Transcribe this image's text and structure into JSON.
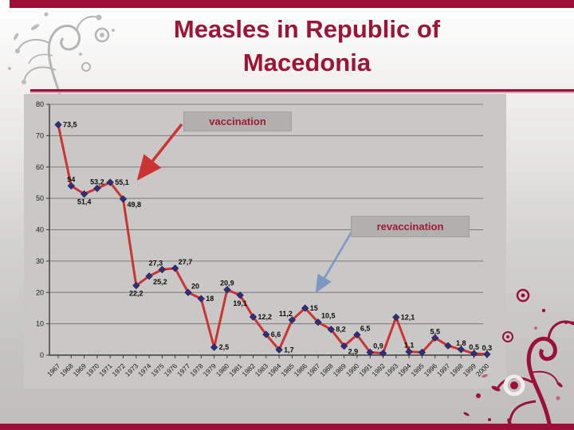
{
  "slide": {
    "title_line1": "Measles in Republic of",
    "title_line2": "Macedonia"
  },
  "colors": {
    "theme_maroon": "#9c1038",
    "title_text": "#9e1434",
    "divider_pink": "#dc9cb4",
    "chart_background": "#c9c8c6",
    "gridline": "#7d7b78",
    "series_line": "#cc3333",
    "marker": "#2f2f80",
    "annotation_box": "#b2b0ae",
    "annotation_text": "#9e1b32",
    "vaccination_arrow": "#cc3333",
    "revaccination_arrow": "#7b97c4"
  },
  "chart_data": {
    "type": "line",
    "title": "",
    "xlabel": "",
    "ylabel": "",
    "ylim": [
      0,
      80
    ],
    "yticks": [
      0,
      10,
      20,
      30,
      40,
      50,
      60,
      70,
      80
    ],
    "grid": true,
    "legend_position": "none",
    "line_color": "#cc3333",
    "marker_color": "#2f2f80",
    "marker_shape": "diamond",
    "x_years": [
      "1967",
      "1968",
      "1969",
      "1970",
      "1971",
      "1972",
      "1973",
      "1974",
      "1975",
      "1976",
      "1977",
      "1978",
      "1979",
      "1980",
      "1981",
      "1982",
      "1983",
      "1984",
      "1985",
      "1986",
      "1987",
      "1988",
      "1989",
      "1990",
      "1991",
      "1992",
      "1993",
      "1994",
      "1995",
      "1996",
      "1997",
      "1998",
      "1999",
      "2000"
    ],
    "values": [
      73.5,
      54,
      51.4,
      53.2,
      55.1,
      49.8,
      22.2,
      25.2,
      27.3,
      27.7,
      20,
      18,
      2.5,
      20.9,
      19.1,
      12.2,
      6.6,
      1.7,
      11.2,
      15,
      10.5,
      8.2,
      2.9,
      6.5,
      0.9,
      0.6,
      12.1,
      1.1,
      0.9,
      5.5,
      3,
      1.8,
      0.5,
      0.3
    ],
    "point_labels": [
      "73,5",
      "54",
      "51,4",
      "53,2",
      "55,1",
      "49,8",
      "22,2",
      "25,2",
      "27,3",
      "27,7",
      "20",
      "18",
      "2,5",
      "20,9",
      "19,1",
      "12,2",
      "6,6",
      "1,7",
      "11,2",
      "15",
      "10,5",
      "8,2",
      "2,9",
      "6,5",
      "0,9",
      "",
      "12,1",
      "1,1",
      "",
      "5,5",
      "",
      "1,8",
      "0,5",
      "0,3"
    ],
    "label_pos": [
      "right",
      "above",
      "below",
      "above",
      "right",
      "right-below",
      "below",
      "right-below",
      "above-left",
      "above-right",
      "above-right",
      "right",
      "right",
      "above",
      "below",
      "right",
      "right",
      "right",
      "above-left",
      "right",
      "above-right",
      "right",
      "right-below",
      "above-right",
      "above-right",
      "",
      "right",
      "above",
      "",
      "above",
      "",
      "above",
      "above",
      "above"
    ],
    "annotations": [
      {
        "text": "vaccination",
        "points_to_year": "1972"
      },
      {
        "text": "revaccination",
        "points_to_year": "1986"
      }
    ]
  }
}
